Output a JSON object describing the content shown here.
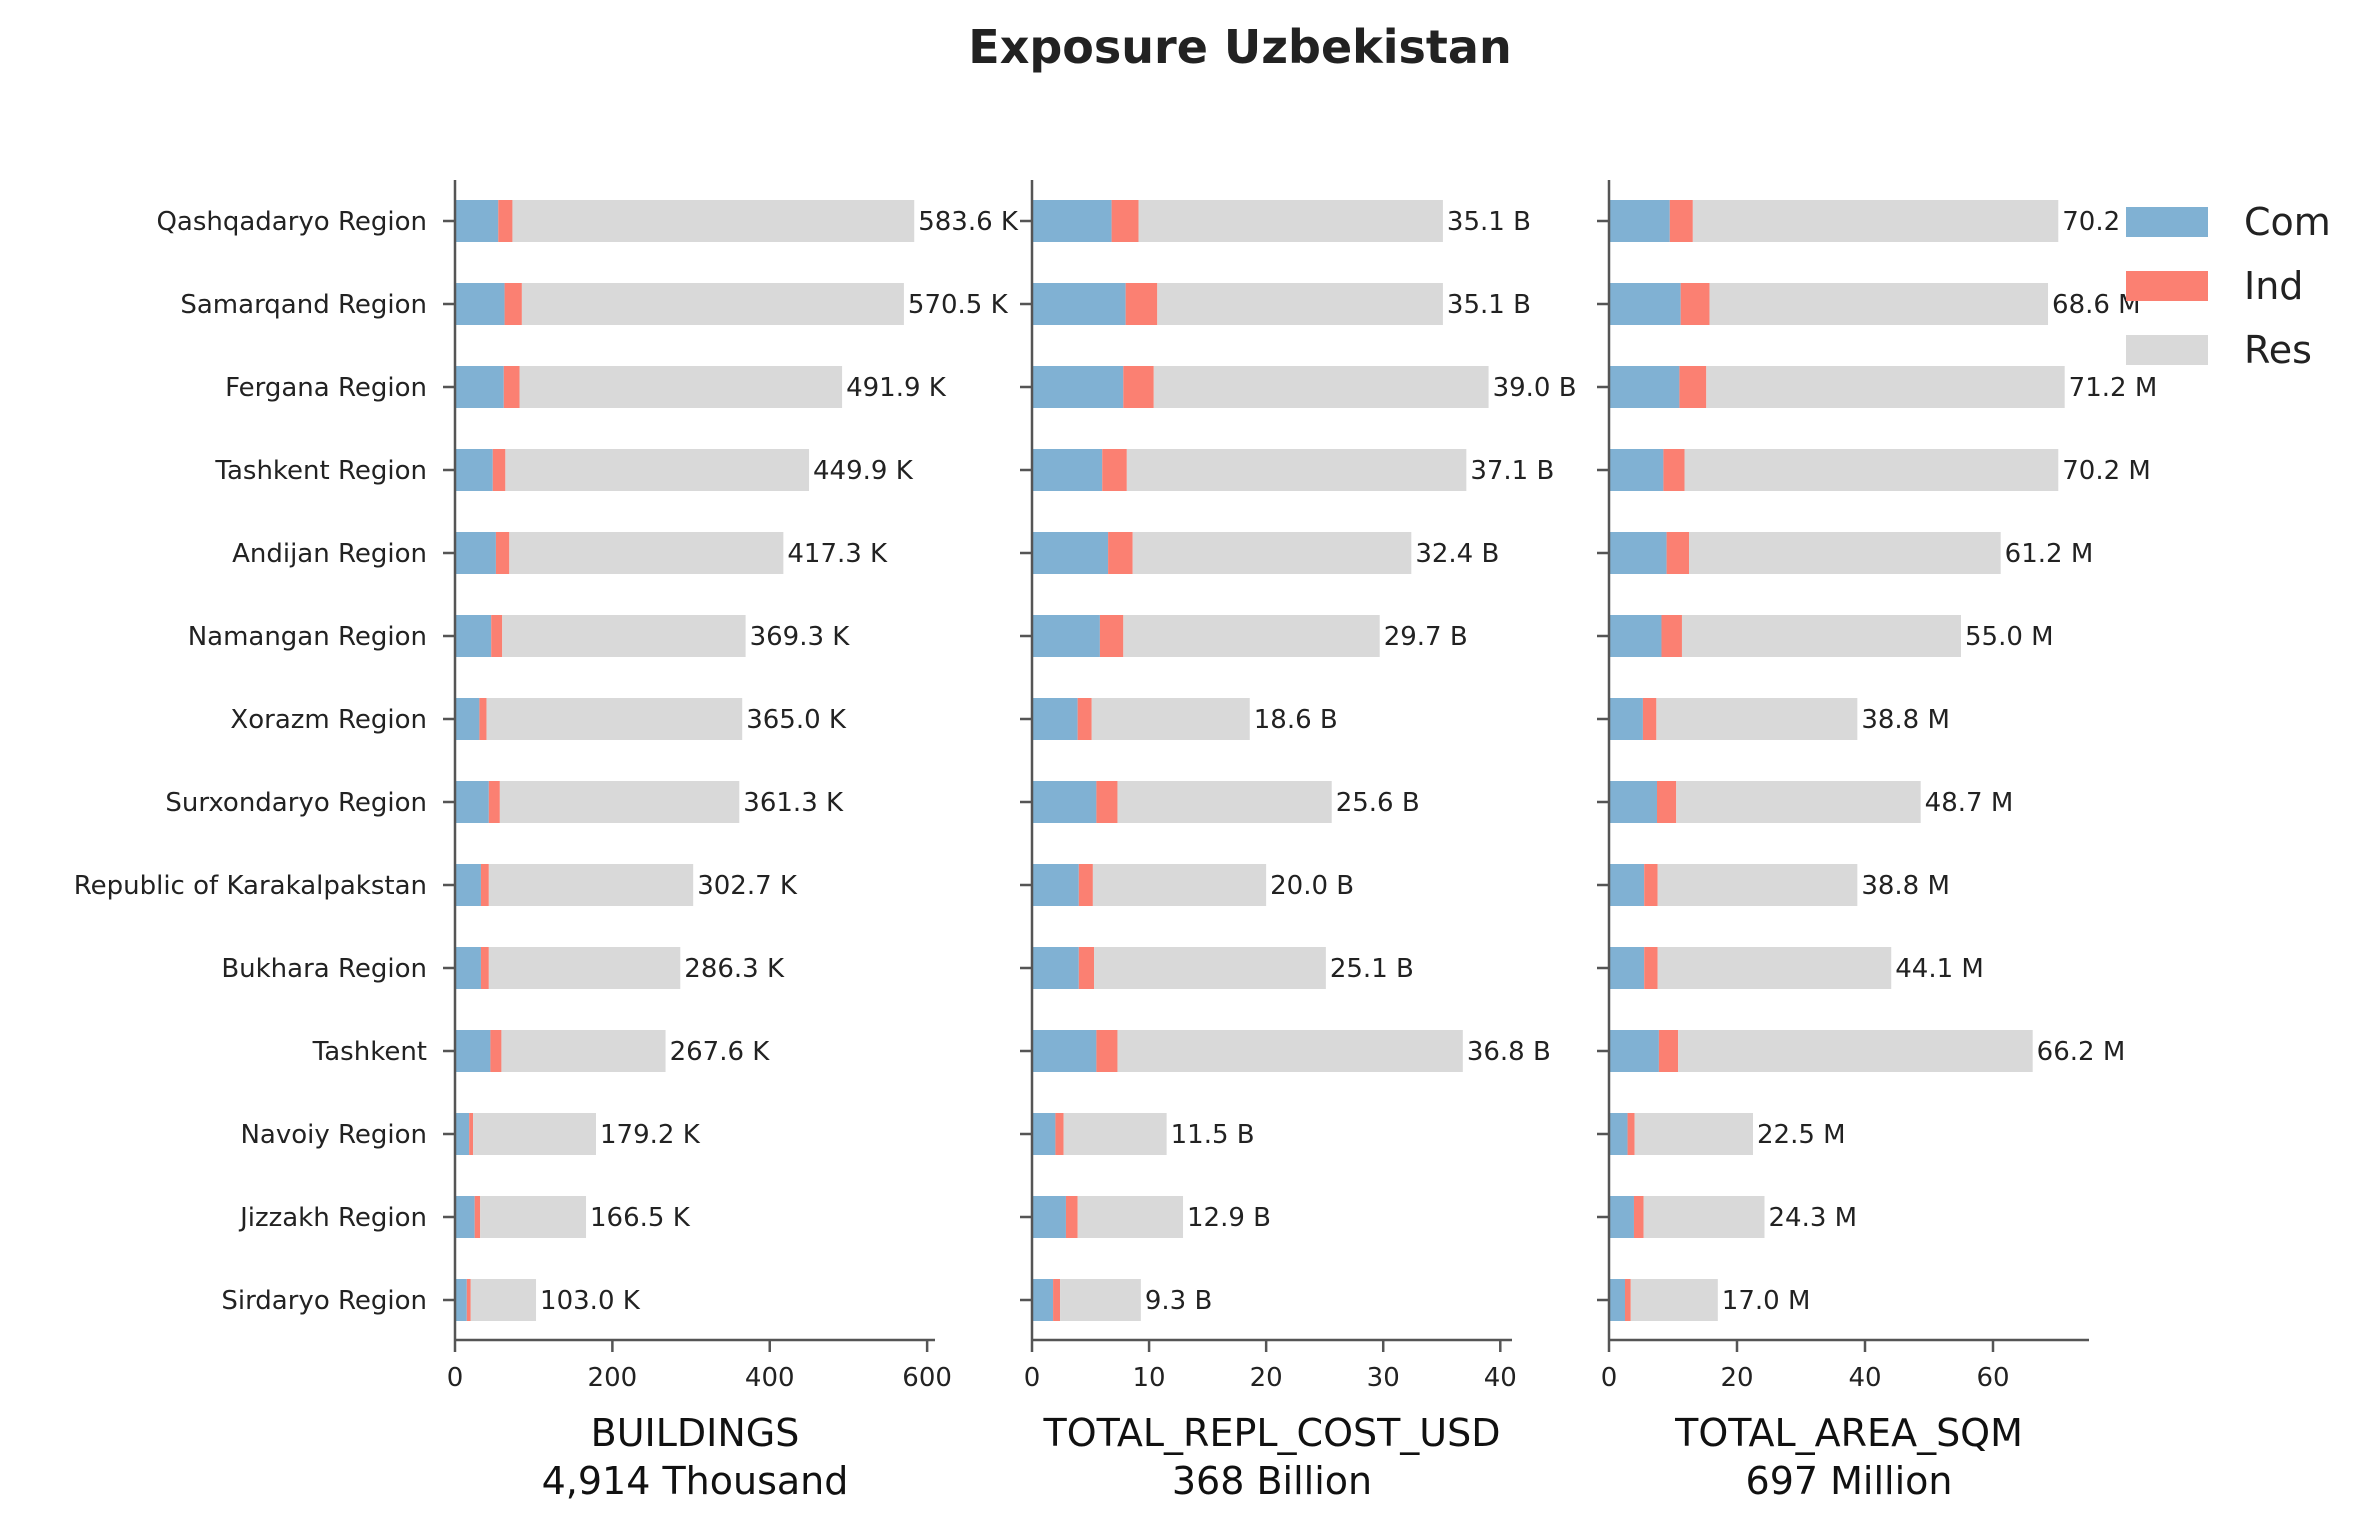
{
  "title": "Exposure Uzbekistan",
  "colors": {
    "Com": "#80b1d3",
    "Ind": "#fb8072",
    "Res": "#d9d9d9",
    "axis": "#555555"
  },
  "legend": {
    "placement": "top-right",
    "entries": [
      "Com",
      "Ind",
      "Res"
    ]
  },
  "chart_data": {
    "type": "bar",
    "orientation": "horizontal",
    "stacked": true,
    "grid": false,
    "categories": [
      "Qashqadaryo Region",
      "Samarqand Region",
      "Fergana Region",
      "Tashkent Region",
      "Andijan Region",
      "Namangan Region",
      "Xorazm Region",
      "Surxondaryo Region",
      "Republic of Karakalpakstan",
      "Bukhara Region",
      "Tashkent",
      "Navoiy Region",
      "Jizzakh Region",
      "Sirdaryo Region"
    ],
    "panels": [
      {
        "xlabel": "BUILDINGS",
        "subtitle": "4,914 Thousand",
        "xlim": [
          0,
          610
        ],
        "xticks": [
          0,
          200,
          400,
          600
        ],
        "series": [
          {
            "name": "Com",
            "values": [
              55,
              63,
              62,
              48,
              52,
              46,
              31,
              43,
              33,
              33,
              45,
              18,
              25,
              15
            ]
          },
          {
            "name": "Ind",
            "values": [
              18,
              22,
              20,
              16,
              17,
              14,
              9,
              14,
              10,
              10,
              14,
              5,
              7,
              5
            ]
          },
          {
            "name": "Res",
            "values": [
              510.6,
              485.5,
              409.9,
              385.9,
              348.3,
              309.3,
              325.0,
              304.3,
              259.7,
              243.3,
              208.6,
              156.2,
              134.5,
              83.0
            ]
          }
        ],
        "labels": [
          "583.6 K",
          "570.5 K",
          "491.9 K",
          "449.9 K",
          "417.3 K",
          "369.3 K",
          "365.0 K",
          "361.3 K",
          "302.7 K",
          "286.3 K",
          "267.6 K",
          "179.2 K",
          "166.5 K",
          "103.0 K"
        ]
      },
      {
        "xlabel": "TOTAL_REPL_COST_USD",
        "subtitle": "368 Billion",
        "xlim": [
          0,
          41
        ],
        "xticks": [
          0,
          10,
          20,
          30,
          40
        ],
        "series": [
          {
            "name": "Com",
            "values": [
              6.8,
              8.0,
              7.8,
              6.0,
              6.5,
              5.8,
              3.9,
              5.5,
              4.0,
              4.0,
              5.5,
              2.0,
              2.9,
              1.8
            ]
          },
          {
            "name": "Ind",
            "values": [
              2.3,
              2.7,
              2.6,
              2.1,
              2.1,
              2.0,
              1.2,
              1.8,
              1.2,
              1.3,
              1.8,
              0.7,
              1.0,
              0.6
            ]
          },
          {
            "name": "Res",
            "values": [
              26.0,
              24.4,
              28.6,
              29.0,
              23.8,
              21.9,
              13.5,
              18.3,
              14.8,
              19.8,
              29.5,
              8.8,
              9.0,
              6.9
            ]
          }
        ],
        "labels": [
          "35.1 B",
          "35.1 B",
          "39.0 B",
          "37.1 B",
          "32.4 B",
          "29.7 B",
          "18.6 B",
          "25.6 B",
          "20.0 B",
          "25.1 B",
          "36.8 B",
          "11.5 B",
          "12.9 B",
          "9.3 B"
        ]
      },
      {
        "xlabel": "TOTAL_AREA_SQM",
        "subtitle": "697 Million",
        "xlim": [
          0,
          75
        ],
        "xticks": [
          0,
          20,
          40,
          60
        ],
        "series": [
          {
            "name": "Com",
            "values": [
              9.5,
              11.2,
              11.0,
              8.5,
              9.0,
              8.2,
              5.3,
              7.5,
              5.5,
              5.5,
              7.8,
              2.9,
              3.9,
              2.5
            ]
          },
          {
            "name": "Ind",
            "values": [
              3.6,
              4.5,
              4.2,
              3.3,
              3.5,
              3.2,
              2.1,
              3.0,
              2.1,
              2.1,
              3.0,
              1.1,
              1.5,
              0.9
            ]
          },
          {
            "name": "Res",
            "values": [
              57.1,
              52.9,
              56.0,
              58.4,
              48.7,
              43.6,
              31.4,
              38.2,
              31.2,
              36.5,
              55.4,
              18.5,
              18.9,
              13.6
            ]
          }
        ],
        "labels": [
          "70.2 M",
          "68.6 M",
          "71.2 M",
          "70.2 M",
          "61.2 M",
          "55.0 M",
          "38.8 M",
          "48.7 M",
          "38.8 M",
          "44.1 M",
          "66.2 M",
          "22.5 M",
          "24.3 M",
          "17.0 M"
        ]
      }
    ]
  }
}
